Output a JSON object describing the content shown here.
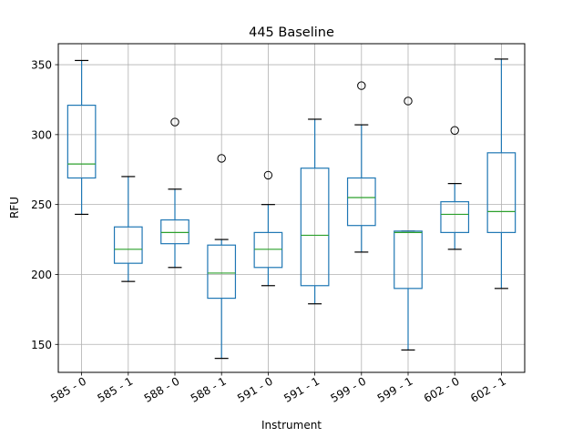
{
  "chart_data": {
    "type": "boxplot",
    "title": "445 Baseline",
    "xlabel": "Instrument",
    "ylabel": "RFU",
    "ylim": [
      130,
      365
    ],
    "yticks": [
      150,
      200,
      250,
      300,
      350
    ],
    "grid": true,
    "colors": {
      "box": "#1f77b4",
      "median": "#2ca02c",
      "grid": "#b0b0b0",
      "axis": "#000000"
    },
    "categories": [
      "585 - 0",
      "585 - 1",
      "588 - 0",
      "588 - 1",
      "591 - 0",
      "591 - 1",
      "599 - 0",
      "599 - 1",
      "602 - 0",
      "602 - 1"
    ],
    "boxes": [
      {
        "whislo": 243,
        "q1": 269,
        "med": 279,
        "q3": 321,
        "whishi": 353,
        "fliers": []
      },
      {
        "whislo": 195,
        "q1": 208,
        "med": 218,
        "q3": 234,
        "whishi": 270,
        "fliers": []
      },
      {
        "whislo": 205,
        "q1": 222,
        "med": 230,
        "q3": 239,
        "whishi": 261,
        "fliers": [
          309
        ]
      },
      {
        "whislo": 140,
        "q1": 183,
        "med": 201,
        "q3": 221,
        "whishi": 225,
        "fliers": [
          283
        ]
      },
      {
        "whislo": 192,
        "q1": 205,
        "med": 218,
        "q3": 230,
        "whishi": 250,
        "fliers": [
          271
        ]
      },
      {
        "whislo": 179,
        "q1": 192,
        "med": 228,
        "q3": 276,
        "whishi": 311,
        "fliers": []
      },
      {
        "whislo": 216,
        "q1": 235,
        "med": 255,
        "q3": 269,
        "whishi": 307,
        "fliers": [
          335
        ]
      },
      {
        "whislo": 146,
        "q1": 190,
        "med": 230,
        "q3": 231,
        "whishi": 231,
        "fliers": [
          324
        ]
      },
      {
        "whislo": 218,
        "q1": 230,
        "med": 243,
        "q3": 252,
        "whishi": 265,
        "fliers": [
          303
        ]
      },
      {
        "whislo": 190,
        "q1": 230,
        "med": 245,
        "q3": 287,
        "whishi": 354,
        "fliers": []
      }
    ]
  }
}
